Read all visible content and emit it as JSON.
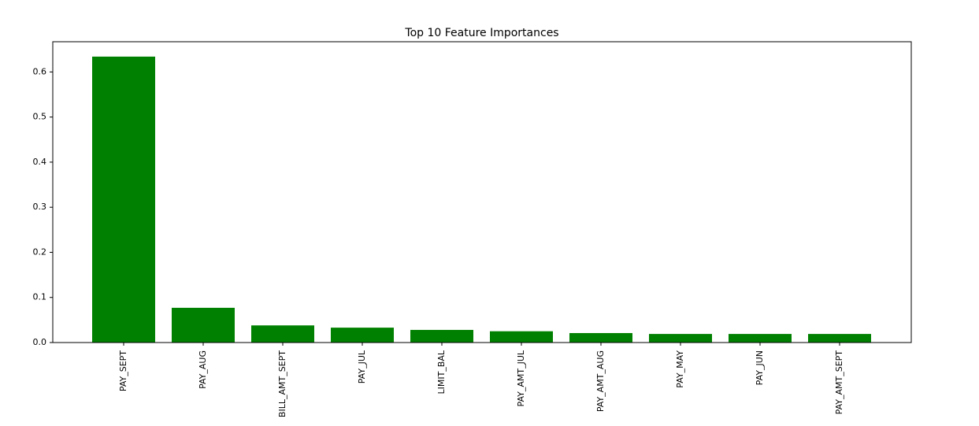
{
  "chart_data": {
    "type": "bar",
    "title": "Top 10 Feature Importances",
    "xlabel": "",
    "ylabel": "",
    "categories": [
      "PAY_SEPT",
      "PAY_AUG",
      "BILL_AMT_SEPT",
      "PAY_JUL",
      "LIMIT_BAL",
      "PAY_AMT_JUL",
      "PAY_AMT_AUG",
      "PAY_MAY",
      "PAY_JUN",
      "PAY_AMT_SEPT"
    ],
    "values": [
      0.634,
      0.077,
      0.038,
      0.033,
      0.028,
      0.025,
      0.021,
      0.019,
      0.019,
      0.019
    ],
    "ylim": [
      0,
      0.667
    ],
    "yticks": [
      "0.0",
      "0.1",
      "0.2",
      "0.3",
      "0.4",
      "0.5",
      "0.6"
    ],
    "bar_color": "#008000",
    "grid": false,
    "legend": "none"
  }
}
